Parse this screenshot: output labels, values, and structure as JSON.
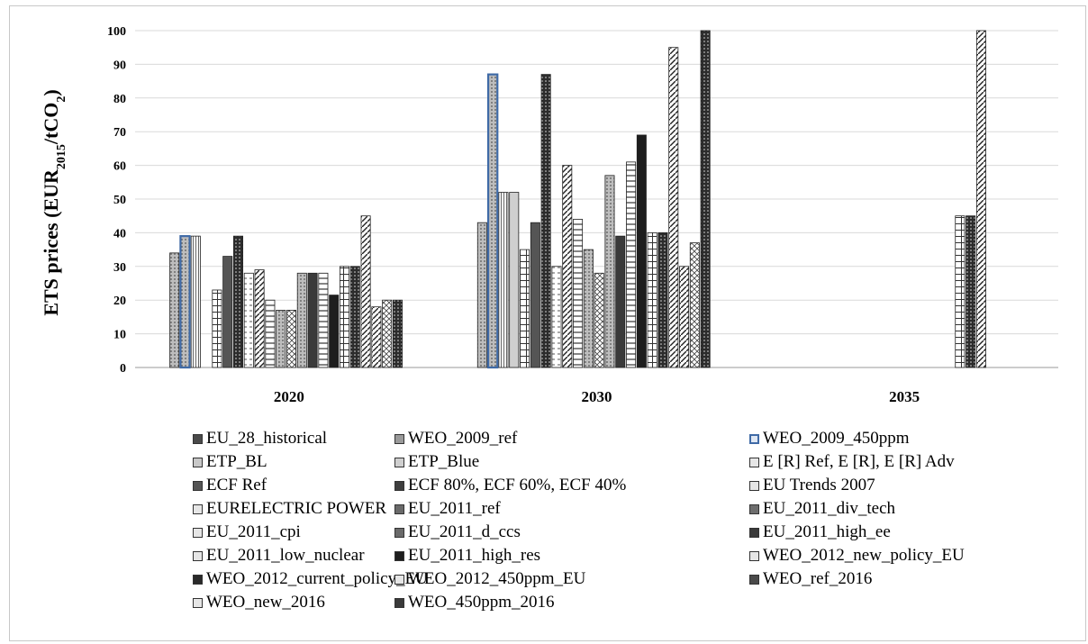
{
  "chart_data": {
    "type": "bar",
    "ylabel_parts": [
      "ETS prices (EUR",
      "2015",
      "/tCO",
      "2",
      ")"
    ],
    "ylim": [
      0,
      100
    ],
    "yticks": [
      "0",
      "10",
      "20",
      "30",
      "40",
      "50",
      "60",
      "70",
      "80",
      "90",
      "100"
    ],
    "categories": [
      "2020",
      "2030",
      "2035"
    ],
    "grid": true,
    "legend_position": "bottom",
    "series": [
      {
        "name": "EU_28_historical",
        "values": [
          null,
          null,
          null
        ],
        "fill": "#4a4a4a",
        "pattern": "solid"
      },
      {
        "name": "WEO_2009_ref",
        "values": [
          34,
          43,
          null
        ],
        "fill": "#9a9a9a",
        "pattern": "dots"
      },
      {
        "name": "WEO_2009_450ppm",
        "values": [
          39,
          87,
          null
        ],
        "fill": "#ffffff",
        "pattern": "blue"
      },
      {
        "name": "ETP_BL",
        "values": [
          39,
          52,
          null
        ],
        "fill": "#c8c8c8",
        "pattern": "vlines"
      },
      {
        "name": "ETP_Blue",
        "values": [
          null,
          52,
          null
        ],
        "fill": "#cfcfcf",
        "pattern": "solid-light"
      },
      {
        "name": "E [R] Ref, E [R], E [R] Adv",
        "values": [
          23,
          35,
          null
        ],
        "fill": "#ffffff",
        "pattern": "grid"
      },
      {
        "name": "ECF Ref",
        "values": [
          33,
          43,
          null
        ],
        "fill": "#555555",
        "pattern": "solid"
      },
      {
        "name": "ECF 80%, ECF 60%, ECF 40%",
        "values": [
          39,
          87,
          null
        ],
        "fill": "#3e3e3e",
        "pattern": "darkdots"
      },
      {
        "name": "EU Trends 2007",
        "values": [
          28,
          30,
          null
        ],
        "fill": "#ffffff",
        "pattern": "dashes"
      },
      {
        "name": "EURELECTRIC POWER",
        "values": [
          29,
          60,
          null
        ],
        "fill": "#ffffff",
        "pattern": "diag"
      },
      {
        "name": "EU_2011_ref",
        "values": [
          20,
          44,
          null
        ],
        "fill": "#6a6a6a",
        "pattern": "hlines"
      },
      {
        "name": "EU_2011_div_tech",
        "values": [
          17,
          35,
          null
        ],
        "fill": "#6e6e6e",
        "pattern": "dots"
      },
      {
        "name": "EU_2011_cpi",
        "values": [
          17,
          28,
          null
        ],
        "fill": "#ffffff",
        "pattern": "cross"
      },
      {
        "name": "EU_2011_d_ccs",
        "values": [
          28,
          57,
          null
        ],
        "fill": "#6a6a6a",
        "pattern": "dots"
      },
      {
        "name": "EU_2011_high_ee",
        "values": [
          28,
          39,
          null
        ],
        "fill": "#3a3a3a",
        "pattern": "solid"
      },
      {
        "name": "EU_2011_low_nuclear",
        "values": [
          28,
          61,
          null
        ],
        "fill": "#ffffff",
        "pattern": "hlines"
      },
      {
        "name": "EU_2011_high_res",
        "values": [
          21.5,
          69,
          null
        ],
        "fill": "#1e1e1e",
        "pattern": "solid"
      },
      {
        "name": "WEO_2012_new_policy_EU",
        "values": [
          30,
          40,
          45
        ],
        "fill": "#ffffff",
        "pattern": "grid"
      },
      {
        "name": "WEO_2012_current_policy_EU",
        "values": [
          30,
          40,
          45
        ],
        "fill": "#2a2a2a",
        "pattern": "darkdots"
      },
      {
        "name": "WEO_2012_450ppm_EU",
        "values": [
          45,
          95,
          100
        ],
        "fill": "#ffffff",
        "pattern": "diag"
      },
      {
        "name": "WEO_ref_2016",
        "values": [
          18,
          30,
          null
        ],
        "fill": "#4a4a4a",
        "pattern": "diag"
      },
      {
        "name": "WEO_new_2016",
        "values": [
          20,
          37,
          null
        ],
        "fill": "#ffffff",
        "pattern": "cross"
      },
      {
        "name": "WEO_450ppm_2016",
        "values": [
          20,
          100,
          null
        ],
        "fill": "#3a3a3a",
        "pattern": "darkdots"
      }
    ]
  }
}
